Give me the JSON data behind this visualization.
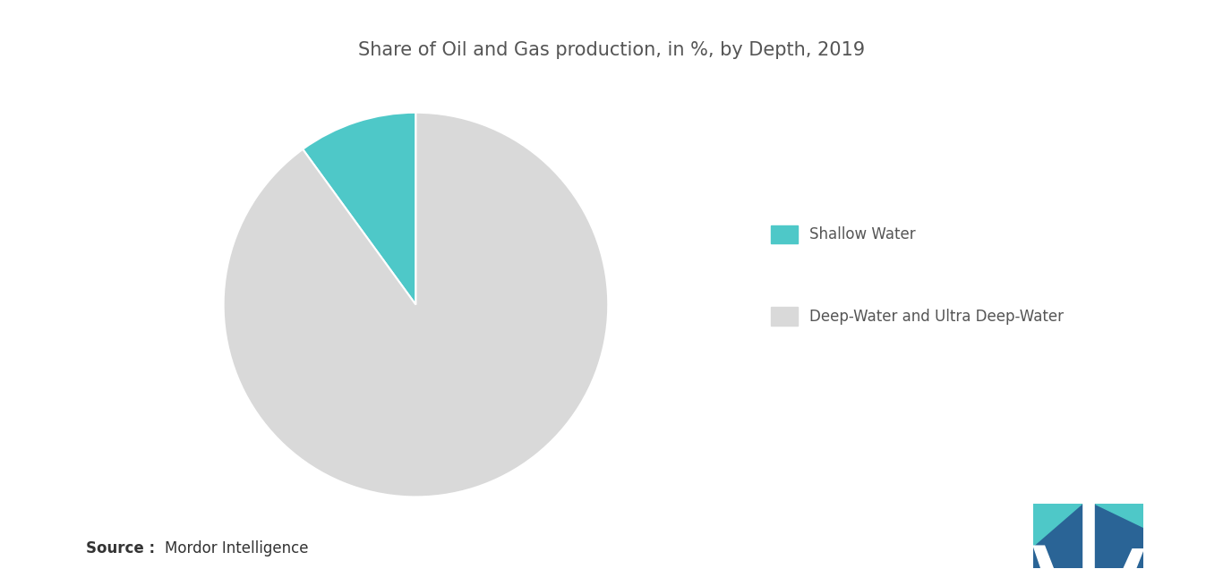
{
  "title": "Share of Oil and Gas production, in %, by Depth, 2019",
  "title_fontsize": 15,
  "slices": [
    10,
    90
  ],
  "labels": [
    "Shallow Water",
    "Deep-Water and Ultra Deep-Water"
  ],
  "colors": [
    "#4EC8C8",
    "#D9D9D9"
  ],
  "legend_labels": [
    "Shallow Water",
    "Deep-Water and Ultra Deep-Water"
  ],
  "background_color": "#FFFFFF",
  "text_color": "#555555",
  "startangle": 90,
  "logo_dark_blue": "#2A6496",
  "logo_teal": "#4EC8C8"
}
